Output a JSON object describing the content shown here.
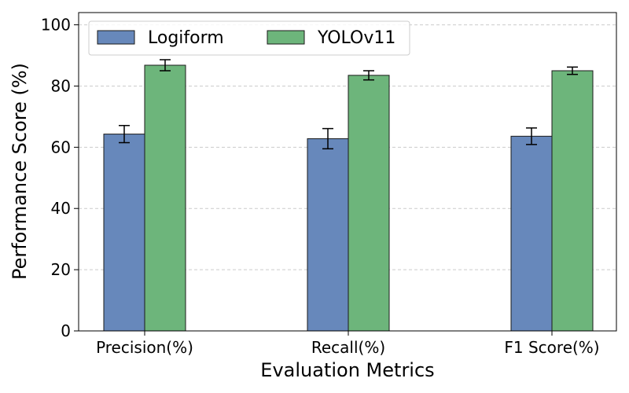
{
  "chart_data": {
    "type": "bar",
    "title": "",
    "xlabel": "Evaluation Metrics",
    "ylabel": "Performance Score (%)",
    "categories": [
      "Precision(%)",
      "Recall(%)",
      "F1 Score(%)"
    ],
    "ylim": [
      0,
      104
    ],
    "yticks": [
      "0",
      "20",
      "40",
      "60",
      "80",
      "100"
    ],
    "grid": "y-dashed",
    "legend_position": "top-left",
    "series": [
      {
        "name": "Logiform",
        "color": "#6788bb",
        "values": [
          64.3,
          62.8,
          63.6
        ],
        "errors": [
          2.8,
          3.3,
          2.7
        ]
      },
      {
        "name": "YOLOv11",
        "color": "#6db57b",
        "values": [
          86.8,
          83.5,
          85.0
        ],
        "errors": [
          1.8,
          1.5,
          1.2
        ]
      }
    ]
  }
}
